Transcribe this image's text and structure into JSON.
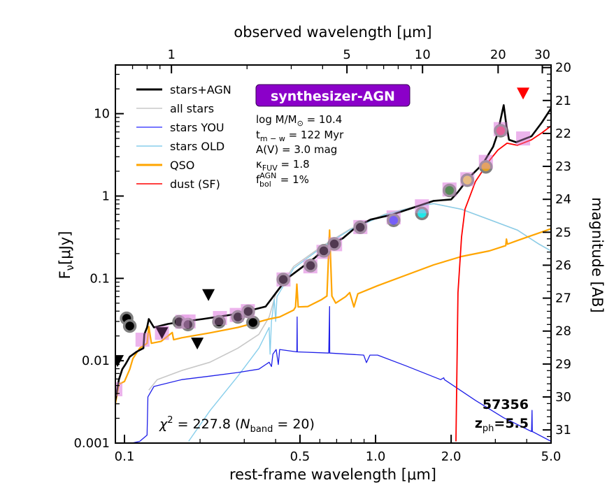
{
  "chart_data": {
    "type": "line",
    "xlabel_bottom": "rest-frame wavelength [μm]",
    "xlabel_top": "observed wavelength [μm]",
    "ylabel_left": "F",
    "ylabel_left_sub": "ν",
    "ylabel_left_unit": "[μJy]",
    "ylabel_right": "magnitude [AB]",
    "x_scale": "log",
    "y_scale": "log",
    "xlim": [
      0.092,
      5.0
    ],
    "ylim": [
      0.001,
      39
    ],
    "redshift": 5.5,
    "x_ticks_bottom": [
      {
        "v": 0.1,
        "label": "0.1"
      },
      {
        "v": 0.5,
        "label": "0.5"
      },
      {
        "v": 1.0,
        "label": "1.0"
      },
      {
        "v": 2.0,
        "label": "2.0"
      },
      {
        "v": 5.0,
        "label": "5.0"
      }
    ],
    "x_ticks_top": [
      {
        "v": 1,
        "label": "1"
      },
      {
        "v": 5,
        "label": "5"
      },
      {
        "v": 10,
        "label": "10"
      },
      {
        "v": 20,
        "label": "20"
      },
      {
        "v": 30,
        "label": "30"
      }
    ],
    "y_ticks_left": [
      {
        "v": 10,
        "label": "10"
      },
      {
        "v": 1,
        "label": "1"
      },
      {
        "v": 0.1,
        "label": "0.1"
      },
      {
        "v": 0.01,
        "label": "0.01"
      },
      {
        "v": 0.001,
        "label": "0.001"
      }
    ],
    "y_ticks_right": [
      "20",
      "21",
      "22",
      "23",
      "24",
      "25",
      "26",
      "27",
      "28",
      "29",
      "30",
      "31"
    ],
    "legend_position": "top-left",
    "series": [
      {
        "name": "all stars",
        "color": "#c8c8c8",
        "width": 1.6,
        "points": [
          [
            0.125,
            0.0044
          ],
          [
            0.135,
            0.0059
          ],
          [
            0.169,
            0.0076
          ],
          [
            0.219,
            0.0096
          ],
          [
            0.283,
            0.0142
          ],
          [
            0.343,
            0.0209
          ],
          [
            0.377,
            0.034
          ],
          [
            0.402,
            0.0671
          ],
          [
            0.472,
            0.14
          ],
          [
            0.61,
            0.245
          ],
          [
            0.789,
            0.395
          ],
          [
            1.087,
            0.6
          ],
          [
            1.498,
            0.77
          ],
          [
            1.703,
            0.81
          ],
          [
            2.2,
            0.69
          ],
          [
            2.84,
            0.517
          ],
          [
            3.67,
            0.386
          ],
          [
            4.46,
            0.262
          ],
          [
            5.0,
            0.2155
          ]
        ]
      },
      {
        "name": "stars OLD",
        "color": "#87ceeb",
        "width": 1.4,
        "points": [
          [
            0.18,
            0.00105
          ],
          [
            0.219,
            0.00247
          ],
          [
            0.283,
            0.0065
          ],
          [
            0.343,
            0.0142
          ],
          [
            0.377,
            0.0254
          ],
          [
            0.38,
            0.012
          ],
          [
            0.385,
            0.03
          ],
          [
            0.395,
            0.0553
          ],
          [
            0.4,
            0.03
          ],
          [
            0.405,
            0.06
          ],
          [
            0.472,
            0.1325
          ],
          [
            0.61,
            0.2375
          ],
          [
            0.789,
            0.386
          ],
          [
            1.087,
            0.592
          ],
          [
            1.498,
            0.762
          ],
          [
            1.703,
            0.807
          ],
          [
            2.2,
            0.691
          ],
          [
            2.84,
            0.517
          ],
          [
            3.67,
            0.386
          ],
          [
            4.46,
            0.262
          ],
          [
            5.0,
            0.2155
          ]
        ]
      },
      {
        "name": "stars YOU",
        "color": "#1f1fe8",
        "width": 1.3,
        "points": [
          [
            0.092,
            0.0009
          ],
          [
            0.115,
            0.00105
          ],
          [
            0.123,
            0.00125
          ],
          [
            0.124,
            0.00364
          ],
          [
            0.131,
            0.00487
          ],
          [
            0.169,
            0.0059
          ],
          [
            0.219,
            0.0065
          ],
          [
            0.283,
            0.0072
          ],
          [
            0.343,
            0.0079
          ],
          [
            0.377,
            0.0096
          ],
          [
            0.385,
            0.0085
          ],
          [
            0.39,
            0.012
          ],
          [
            0.402,
            0.0137
          ],
          [
            0.41,
            0.009
          ],
          [
            0.415,
            0.0137
          ],
          [
            0.486,
            0.0128
          ],
          [
            0.487,
            0.034
          ],
          [
            0.488,
            0.0128
          ],
          [
            0.651,
            0.0124
          ],
          [
            0.656,
            0.0455
          ],
          [
            0.657,
            0.0124
          ],
          [
            0.897,
            0.0117
          ],
          [
            0.92,
            0.0095
          ],
          [
            0.95,
            0.0117
          ],
          [
            1.019,
            0.0117
          ],
          [
            1.318,
            0.0087
          ],
          [
            1.816,
            0.0059
          ],
          [
            1.87,
            0.0062
          ],
          [
            1.88,
            0.0059
          ],
          [
            2.5,
            0.0033
          ],
          [
            3.24,
            0.00203
          ],
          [
            4.18,
            0.00138
          ],
          [
            4.2,
            0.0025
          ],
          [
            4.21,
            0.00138
          ],
          [
            5.0,
            0.00105
          ]
        ]
      },
      {
        "name": "QSO",
        "color": "#ffa500",
        "width": 2.2,
        "points": [
          [
            0.092,
            0.003
          ],
          [
            0.095,
            0.00517
          ],
          [
            0.1,
            0.0056
          ],
          [
            0.105,
            0.0079
          ],
          [
            0.108,
            0.0106
          ],
          [
            0.115,
            0.0142
          ],
          [
            0.123,
            0.0163
          ],
          [
            0.125,
            0.026
          ],
          [
            0.128,
            0.0163
          ],
          [
            0.14,
            0.0172
          ],
          [
            0.155,
            0.022
          ],
          [
            0.157,
            0.018
          ],
          [
            0.169,
            0.019
          ],
          [
            0.219,
            0.0218
          ],
          [
            0.283,
            0.0254
          ],
          [
            0.343,
            0.0297
          ],
          [
            0.377,
            0.0321
          ],
          [
            0.415,
            0.034
          ],
          [
            0.472,
            0.0413
          ],
          [
            0.48,
            0.045
          ],
          [
            0.486,
            0.085
          ],
          [
            0.492,
            0.045
          ],
          [
            0.537,
            0.0455
          ],
          [
            0.61,
            0.0553
          ],
          [
            0.64,
            0.061
          ],
          [
            0.656,
            0.386
          ],
          [
            0.67,
            0.061
          ],
          [
            0.694,
            0.0501
          ],
          [
            0.76,
            0.06
          ],
          [
            0.789,
            0.0671
          ],
          [
            0.82,
            0.045
          ],
          [
            0.85,
            0.065
          ],
          [
            1.019,
            0.0815
          ],
          [
            1.318,
            0.109
          ],
          [
            1.703,
            0.146
          ],
          [
            2.2,
            0.1845
          ],
          [
            2.84,
            0.2155
          ],
          [
            3.3,
            0.25
          ],
          [
            3.32,
            0.3
          ],
          [
            3.35,
            0.26
          ],
          [
            3.67,
            0.288
          ],
          [
            5.0,
            0.401
          ]
        ]
      },
      {
        "name": "dust (SF)",
        "color": "#ff0000",
        "width": 1.8,
        "points": [
          [
            2.09,
            0.00105
          ],
          [
            2.13,
            0.0671
          ],
          [
            2.2,
            0.318
          ],
          [
            2.27,
            0.691
          ],
          [
            2.5,
            1.5
          ],
          [
            2.84,
            2.69
          ],
          [
            3.07,
            3.61
          ],
          [
            3.34,
            4.38
          ],
          [
            3.67,
            4.13
          ],
          [
            4.18,
            4.82
          ],
          [
            4.6,
            5.86
          ],
          [
            5.0,
            7.11
          ]
        ]
      },
      {
        "name": "stars+AGN",
        "color": "#000000",
        "width": 2.6,
        "points": [
          [
            0.092,
            0.0033
          ],
          [
            0.095,
            0.0059
          ],
          [
            0.098,
            0.0079
          ],
          [
            0.101,
            0.0091
          ],
          [
            0.105,
            0.0112
          ],
          [
            0.112,
            0.0129
          ],
          [
            0.119,
            0.0142
          ],
          [
            0.12,
            0.0209
          ],
          [
            0.123,
            0.0254
          ],
          [
            0.125,
            0.0321
          ],
          [
            0.131,
            0.0254
          ],
          [
            0.149,
            0.028
          ],
          [
            0.169,
            0.0297
          ],
          [
            0.205,
            0.0321
          ],
          [
            0.265,
            0.0361
          ],
          [
            0.321,
            0.0413
          ],
          [
            0.365,
            0.0455
          ],
          [
            0.402,
            0.0671
          ],
          [
            0.443,
            0.099
          ],
          [
            0.503,
            0.1325
          ],
          [
            0.572,
            0.177
          ],
          [
            0.651,
            0.252
          ],
          [
            0.74,
            0.306
          ],
          [
            0.841,
            0.426
          ],
          [
            0.956,
            0.517
          ],
          [
            1.159,
            0.592
          ],
          [
            1.406,
            0.719
          ],
          [
            1.703,
            0.873
          ],
          [
            2.0,
            0.908
          ],
          [
            2.13,
            1.12
          ],
          [
            2.35,
            1.66
          ],
          [
            2.67,
            2.44
          ],
          [
            2.94,
            3.97
          ],
          [
            3.07,
            5.86
          ],
          [
            3.15,
            8.64
          ],
          [
            3.24,
            12.7
          ],
          [
            3.32,
            7.11
          ],
          [
            3.4,
            4.82
          ],
          [
            3.63,
            4.5
          ],
          [
            4.18,
            5.32
          ],
          [
            4.6,
            7.85
          ],
          [
            5.0,
            11.6
          ]
        ]
      }
    ],
    "model_fluxes": {
      "color": "#e9a6e9",
      "points": [
        [
          0.092,
          0.0045
        ],
        [
          0.118,
          0.018
        ],
        [
          0.141,
          0.0218
        ],
        [
          0.17,
          0.0297
        ],
        [
          0.18,
          0.03
        ],
        [
          0.24,
          0.033
        ],
        [
          0.28,
          0.036
        ],
        [
          0.31,
          0.04
        ],
        [
          0.43,
          0.097
        ],
        [
          0.55,
          0.14
        ],
        [
          0.62,
          0.21
        ],
        [
          0.69,
          0.26
        ],
        [
          0.87,
          0.42
        ],
        [
          1.18,
          0.55
        ],
        [
          1.53,
          0.75
        ],
        [
          1.97,
          1.2
        ],
        [
          2.32,
          1.6
        ],
        [
          2.75,
          2.6
        ],
        [
          3.15,
          6.5
        ],
        [
          3.87,
          5.0
        ]
      ]
    },
    "photometry": [
      {
        "x": 0.102,
        "y": 0.0327,
        "color": "#000000"
      },
      {
        "x": 0.105,
        "y": 0.0264,
        "color": "#000000"
      },
      {
        "x": 0.165,
        "y": 0.0297,
        "color": "#000000"
      },
      {
        "x": 0.179,
        "y": 0.0275,
        "color": "#000000"
      },
      {
        "x": 0.238,
        "y": 0.0297,
        "color": "#000000"
      },
      {
        "x": 0.283,
        "y": 0.034,
        "color": "#000000"
      },
      {
        "x": 0.311,
        "y": 0.0397,
        "color": "#000000"
      },
      {
        "x": 0.325,
        "y": 0.0291,
        "color": "#000000"
      },
      {
        "x": 0.429,
        "y": 0.097,
        "color": "#000000"
      },
      {
        "x": 0.551,
        "y": 0.143,
        "color": "#000000"
      },
      {
        "x": 0.622,
        "y": 0.216,
        "color": "#000000"
      },
      {
        "x": 0.685,
        "y": 0.262,
        "color": "#000000"
      },
      {
        "x": 0.869,
        "y": 0.417,
        "color": "#000000"
      },
      {
        "x": 1.18,
        "y": 0.507,
        "color": "#3a3aff"
      },
      {
        "x": 1.53,
        "y": 0.615,
        "color": "#20e8e8"
      },
      {
        "x": 1.97,
        "y": 1.17,
        "color": "#0a7a0a"
      },
      {
        "x": 2.32,
        "y": 1.56,
        "color": "#e8c850"
      },
      {
        "x": 2.75,
        "y": 2.26,
        "color": "#e0a020"
      },
      {
        "x": 3.15,
        "y": 6.21,
        "color": "#e04070"
      }
    ],
    "upper_limits": [
      {
        "x": 0.216,
        "y": 0.0633,
        "color": "#000000"
      },
      {
        "x": 0.195,
        "y": 0.0163,
        "color": "#000000"
      },
      {
        "x": 0.141,
        "y": 0.0218,
        "color": "#3a1a3a"
      },
      {
        "x": 0.0938,
        "y": 0.01,
        "color": "#000000"
      },
      {
        "x": 3.87,
        "y": 17.7,
        "color": "#ff0000"
      }
    ]
  },
  "legend": [
    {
      "label": "stars+AGN",
      "color": "#000000",
      "width": 3
    },
    {
      "label": "all stars",
      "color": "#c8c8c8",
      "width": 1.6
    },
    {
      "label": "stars YOU",
      "color": "#4a4aff",
      "width": 1.6
    },
    {
      "label": "stars OLD",
      "color": "#87ceeb",
      "width": 1.6
    },
    {
      "label": "QSO",
      "color": "#ffa500",
      "width": 3
    },
    {
      "label": "dust (SF)",
      "color": "#ff0000",
      "width": 1.6
    }
  ],
  "badge": {
    "label": "synthesizer-AGN",
    "color": "#8b00c9"
  },
  "params": {
    "mass": {
      "pre": "log M/M",
      "sub": "⊙",
      "post": " = 10.4"
    },
    "age": {
      "pre": "t",
      "sub": "m − w",
      "post": " = 122 Myr"
    },
    "av": {
      "pre": "A(V) = 3.0 mag"
    },
    "kappa": {
      "pre": "κ",
      "sub": "FUV",
      "post": " = 1.8"
    },
    "fagn": {
      "pre": "f",
      "sub": "bol",
      "sup": "AGN",
      "post": " = 1%"
    }
  },
  "fit": {
    "chi_pre": "χ",
    "chi_sup": "2",
    "chi_val": " = 227.8 (",
    "n": "N",
    "n_sub": "band",
    "n_post": " = 20)"
  },
  "object": {
    "id": "57356",
    "z_pre": "z",
    "z_sub": "ph",
    "z_post": "=5.5"
  }
}
